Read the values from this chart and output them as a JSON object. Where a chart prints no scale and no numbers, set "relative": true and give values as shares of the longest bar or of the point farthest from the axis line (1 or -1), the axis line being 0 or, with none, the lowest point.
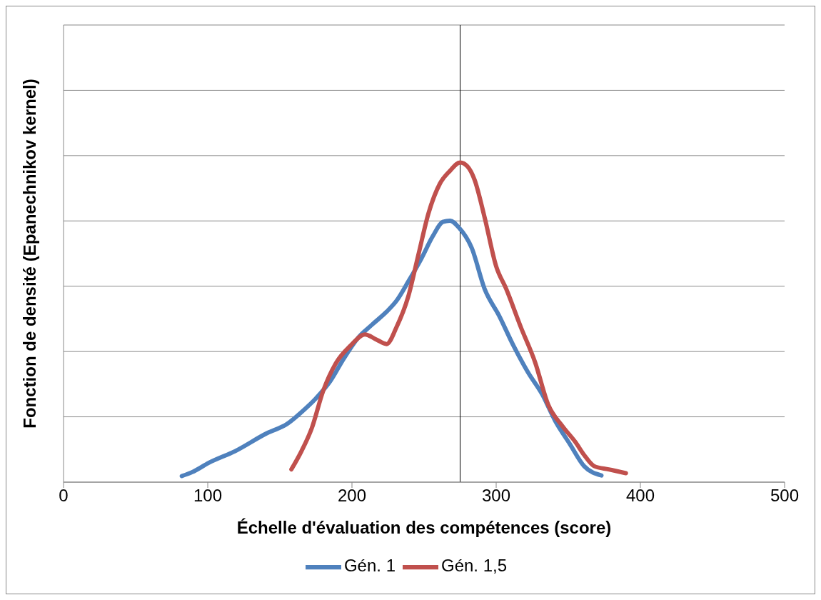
{
  "chart_data": {
    "type": "line",
    "xlabel": "Échelle d'évaluation des compétences (score)",
    "ylabel": "Fonction de densité (Epanechnikov kernel)",
    "relative": true,
    "xlim": [
      0,
      500
    ],
    "xticks": [
      0,
      100,
      200,
      300,
      400,
      500
    ],
    "grid": "y",
    "legend": "bottom",
    "marker": "none",
    "line_style": "solid",
    "ref_lines": [
      {
        "axis": "x",
        "value": 275,
        "color": "#000000"
      }
    ],
    "series": [
      {
        "name": "Gén. 1",
        "color": "#4f81bd",
        "x": [
          82,
          89,
          101,
          119,
          141,
          155,
          165,
          175,
          185,
          194,
          204,
          214,
          224,
          231,
          239,
          248,
          256,
          263,
          268,
          274,
          283,
          292,
          302,
          312,
          322,
          332,
          341,
          351,
          361,
          373
        ],
        "values": [
          0.019,
          0.031,
          0.061,
          0.097,
          0.153,
          0.182,
          0.219,
          0.262,
          0.316,
          0.384,
          0.45,
          0.493,
          0.533,
          0.568,
          0.627,
          0.698,
          0.769,
          0.814,
          0.818,
          0.797,
          0.733,
          0.604,
          0.521,
          0.427,
          0.344,
          0.274,
          0.191,
          0.12,
          0.05,
          0.021
        ]
      },
      {
        "name": "Gén. 1,5",
        "color": "#c0504d",
        "x": [
          158,
          165,
          172,
          180,
          189,
          199,
          209,
          217,
          224,
          231,
          239,
          246,
          253,
          261,
          268,
          275,
          280,
          285,
          292,
          300,
          307,
          317,
          327,
          336,
          346,
          355,
          361,
          368,
          378,
          390
        ],
        "values": [
          0.04,
          0.097,
          0.167,
          0.285,
          0.373,
          0.427,
          0.462,
          0.446,
          0.432,
          0.486,
          0.58,
          0.71,
          0.84,
          0.934,
          0.974,
          1,
          0.988,
          0.946,
          0.828,
          0.675,
          0.604,
          0.486,
          0.375,
          0.243,
          0.175,
          0.125,
          0.085,
          0.05,
          0.04,
          0.028
        ]
      }
    ]
  }
}
